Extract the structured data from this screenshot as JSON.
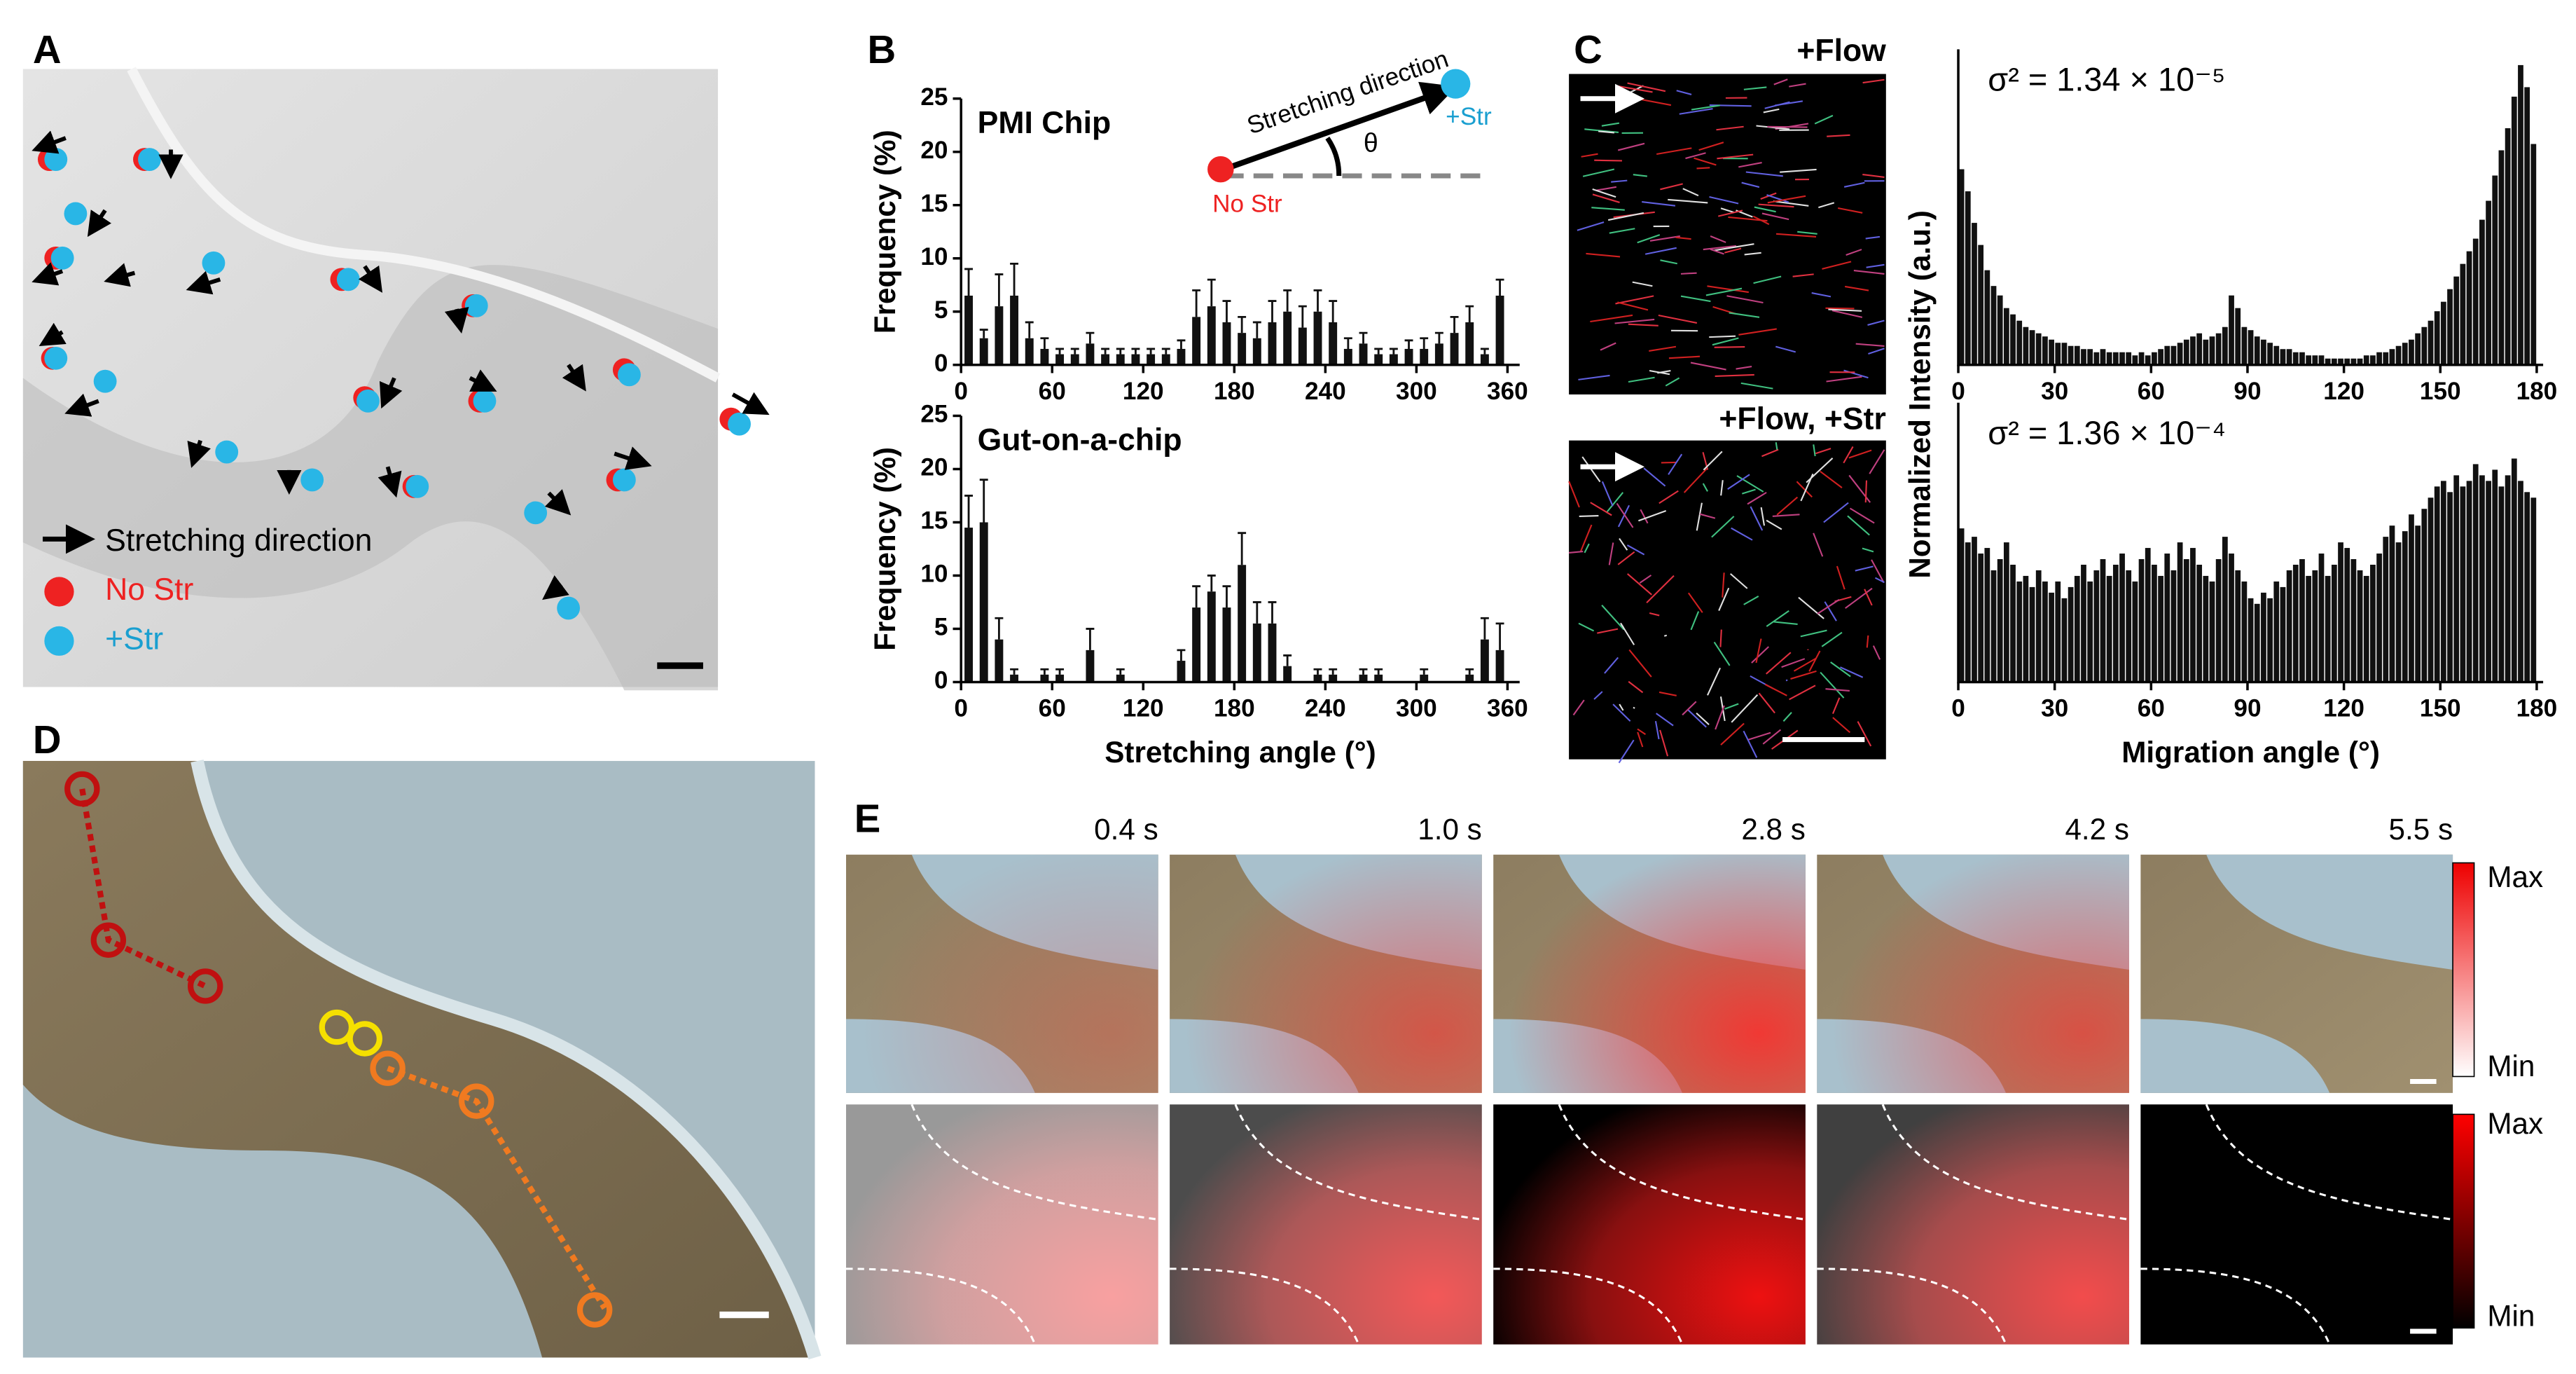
{
  "panels": {
    "A": {
      "label": "A",
      "legend": [
        "Stretching direction",
        "No Str",
        "+Str"
      ]
    },
    "B": {
      "label": "B",
      "inset": {
        "line": "Stretching direction",
        "angle": "θ",
        "start": "No Str",
        "end": "+Str"
      }
    },
    "C": {
      "label": "C",
      "images": [
        "+Flow",
        "+Flow, +Str"
      ]
    },
    "D": {
      "label": "D"
    },
    "E": {
      "label": "E",
      "times": [
        "0.4 s",
        "1.0 s",
        "2.8 s",
        "4.2 s",
        "5.5 s"
      ],
      "colorbars": [
        [
          "Max",
          "Min"
        ],
        [
          "Max",
          "Min"
        ]
      ]
    }
  },
  "chart_data": [
    {
      "type": "bar",
      "title": "PMI Chip",
      "y_label": "Frequency (%)",
      "x": [
        5,
        15,
        25,
        35,
        45,
        55,
        65,
        75,
        85,
        95,
        105,
        115,
        125,
        135,
        145,
        155,
        165,
        175,
        185,
        195,
        205,
        215,
        225,
        235,
        245,
        255,
        265,
        275,
        285,
        295,
        305,
        315,
        325,
        335,
        345,
        355
      ],
      "values": [
        6.5,
        2.5,
        5.5,
        6.5,
        2.5,
        1.5,
        1,
        1,
        2,
        1,
        1,
        1,
        1,
        1,
        1.5,
        4.5,
        5.5,
        4,
        3,
        2.5,
        4,
        5,
        3.5,
        5,
        4,
        1.5,
        2,
        1,
        1,
        1.5,
        1.5,
        2,
        3,
        4,
        1,
        6.5
      ],
      "errors": [
        2.5,
        0.8,
        3,
        3,
        1.5,
        1,
        0.5,
        0.5,
        1,
        0.5,
        0.5,
        0.5,
        0.5,
        0.5,
        0.8,
        2.5,
        2.5,
        2,
        1.5,
        1.5,
        2,
        2,
        2,
        2,
        2,
        1,
        1,
        0.5,
        0.5,
        0.8,
        1,
        1,
        1.5,
        1.5,
        0.5,
        1.5
      ],
      "color": "#111111",
      "xlim": [
        0,
        368
      ],
      "xticks": [
        0,
        60,
        120,
        180,
        240,
        300,
        360
      ],
      "ylim": [
        0,
        25
      ],
      "yticks": [
        0,
        5,
        10,
        15,
        20,
        25
      ]
    },
    {
      "type": "bar",
      "title": "Gut-on-a-chip",
      "y_label": "Frequency (%)",
      "x_label": "Stretching angle (°)",
      "x": [
        5,
        15,
        25,
        35,
        45,
        55,
        65,
        75,
        85,
        95,
        105,
        115,
        125,
        135,
        145,
        155,
        165,
        175,
        185,
        195,
        205,
        215,
        225,
        235,
        245,
        255,
        265,
        275,
        285,
        295,
        305,
        315,
        325,
        335,
        345,
        355
      ],
      "values": [
        14.5,
        15,
        4,
        0.7,
        0,
        0.7,
        0.7,
        0,
        3,
        0,
        0.7,
        0,
        0,
        0,
        2,
        7,
        8.5,
        7,
        11,
        5.5,
        5.5,
        1.5,
        0,
        0.7,
        0.7,
        0,
        0.7,
        0.7,
        0,
        0,
        0.7,
        0,
        0,
        0.7,
        4,
        3
      ],
      "errors": [
        3,
        4,
        2,
        0.5,
        0,
        0.5,
        0.5,
        0,
        2,
        0,
        0.5,
        0,
        0,
        0,
        1,
        2,
        1.5,
        2,
        3,
        2,
        2,
        1,
        0,
        0.5,
        0.5,
        0,
        0.5,
        0.5,
        0,
        0,
        0.5,
        0,
        0,
        0.5,
        2,
        2.5
      ],
      "color": "#111111",
      "xlim": [
        0,
        368
      ],
      "xticks": [
        0,
        60,
        120,
        180,
        240,
        300,
        360
      ],
      "ylim": [
        0,
        25
      ],
      "yticks": [
        0,
        5,
        10,
        15,
        20,
        25
      ]
    },
    {
      "type": "histogram",
      "annotation": "σ² = 1.34 × 10⁻⁵",
      "y_label": "Normalized Intensity (a.u.)",
      "bins": [
        0,
        2,
        4,
        6,
        8,
        10,
        12,
        14,
        16,
        18,
        20,
        22,
        24,
        26,
        28,
        30,
        32,
        34,
        36,
        38,
        40,
        42,
        44,
        46,
        48,
        50,
        52,
        54,
        56,
        58,
        60,
        62,
        64,
        66,
        68,
        70,
        72,
        74,
        76,
        78,
        80,
        82,
        84,
        86,
        88,
        90,
        92,
        94,
        96,
        98,
        100,
        102,
        104,
        106,
        108,
        110,
        112,
        114,
        116,
        118,
        120,
        122,
        124,
        126,
        128,
        130,
        132,
        134,
        136,
        138,
        140,
        142,
        144,
        146,
        148,
        150,
        152,
        154,
        156,
        158,
        160,
        162,
        164,
        166,
        168,
        170,
        172,
        174,
        176,
        178,
        180
      ],
      "values": [
        0.62,
        0.55,
        0.45,
        0.38,
        0.3,
        0.25,
        0.22,
        0.18,
        0.16,
        0.14,
        0.12,
        0.11,
        0.1,
        0.09,
        0.08,
        0.07,
        0.07,
        0.06,
        0.06,
        0.05,
        0.05,
        0.04,
        0.05,
        0.04,
        0.04,
        0.04,
        0.04,
        0.03,
        0.04,
        0.03,
        0.04,
        0.05,
        0.06,
        0.06,
        0.07,
        0.08,
        0.09,
        0.1,
        0.08,
        0.09,
        0.1,
        0.12,
        0.22,
        0.18,
        0.12,
        0.11,
        0.09,
        0.08,
        0.07,
        0.06,
        0.05,
        0.05,
        0.04,
        0.04,
        0.03,
        0.03,
        0.03,
        0.02,
        0.02,
        0.02,
        0.02,
        0.02,
        0.02,
        0.03,
        0.03,
        0.04,
        0.04,
        0.05,
        0.06,
        0.07,
        0.08,
        0.1,
        0.12,
        0.14,
        0.17,
        0.2,
        0.24,
        0.28,
        0.32,
        0.36,
        0.4,
        0.46,
        0.52,
        0.6,
        0.68,
        0.75,
        0.85,
        0.95,
        0.88,
        0.7
      ],
      "color": "#111111",
      "xlim": [
        0,
        182
      ],
      "xticks": [
        0,
        30,
        60,
        90,
        120,
        150,
        180
      ],
      "ylim": [
        0,
        1
      ]
    },
    {
      "type": "histogram",
      "annotation": "σ² = 1.36 × 10⁻⁴",
      "x_label": "Migration angle (°)",
      "bins": [
        0,
        2,
        4,
        6,
        8,
        10,
        12,
        14,
        16,
        18,
        20,
        22,
        24,
        26,
        28,
        30,
        32,
        34,
        36,
        38,
        40,
        42,
        44,
        46,
        48,
        50,
        52,
        54,
        56,
        58,
        60,
        62,
        64,
        66,
        68,
        70,
        72,
        74,
        76,
        78,
        80,
        82,
        84,
        86,
        88,
        90,
        92,
        94,
        96,
        98,
        100,
        102,
        104,
        106,
        108,
        110,
        112,
        114,
        116,
        118,
        120,
        122,
        124,
        126,
        128,
        130,
        132,
        134,
        136,
        138,
        140,
        142,
        144,
        146,
        148,
        150,
        152,
        154,
        156,
        158,
        160,
        162,
        164,
        166,
        168,
        170,
        172,
        174,
        176,
        178,
        180
      ],
      "values": [
        0.55,
        0.5,
        0.52,
        0.46,
        0.48,
        0.4,
        0.44,
        0.5,
        0.42,
        0.36,
        0.38,
        0.34,
        0.4,
        0.36,
        0.32,
        0.36,
        0.3,
        0.34,
        0.38,
        0.42,
        0.36,
        0.4,
        0.44,
        0.38,
        0.42,
        0.46,
        0.4,
        0.36,
        0.44,
        0.48,
        0.42,
        0.38,
        0.46,
        0.4,
        0.5,
        0.44,
        0.48,
        0.42,
        0.38,
        0.36,
        0.44,
        0.52,
        0.46,
        0.4,
        0.36,
        0.3,
        0.28,
        0.32,
        0.3,
        0.36,
        0.34,
        0.4,
        0.42,
        0.44,
        0.38,
        0.4,
        0.46,
        0.38,
        0.42,
        0.5,
        0.48,
        0.44,
        0.4,
        0.38,
        0.42,
        0.46,
        0.52,
        0.56,
        0.5,
        0.54,
        0.6,
        0.56,
        0.62,
        0.66,
        0.7,
        0.72,
        0.68,
        0.74,
        0.7,
        0.72,
        0.78,
        0.74,
        0.72,
        0.76,
        0.7,
        0.74,
        0.8,
        0.72,
        0.68,
        0.66
      ],
      "color": "#111111",
      "xlim": [
        0,
        182
      ],
      "xticks": [
        0,
        30,
        60,
        90,
        120,
        150,
        180
      ],
      "ylim": [
        0,
        1
      ]
    }
  ]
}
